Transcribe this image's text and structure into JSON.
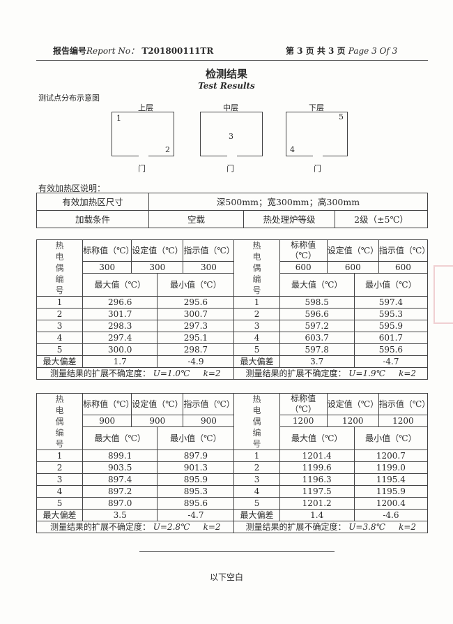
{
  "header": {
    "report_no_cn": "报告编号",
    "report_no_en": "Report No：",
    "report_no": "T201800111TR",
    "page_cn": "第 3 页 共 3 页",
    "page_en": "Page 3 Of 3"
  },
  "title_cn": "检测结果",
  "title_en": "Test Results",
  "diagram": {
    "label": "测试点分布示意图",
    "layers": [
      {
        "name": "上层",
        "points": [
          "1",
          "2"
        ]
      },
      {
        "name": "中层",
        "points": [
          "3"
        ]
      },
      {
        "name": "下层",
        "points": [
          "5",
          "4"
        ]
      }
    ],
    "door": "门"
  },
  "zone": {
    "label": "有效加热区说明：",
    "size_label": "有效加热区尺寸",
    "size_value": "深500mm；宽300mm；高300mm",
    "load_label": "加载条件",
    "load_value": "空载",
    "grade_label": "热处理炉等级",
    "grade_value": "2级（±5℃）"
  },
  "labels": {
    "tc": "热电偶编号",
    "nominal": "标称值（℃）",
    "set": "设定值（℃）",
    "indicated": "指示值（℃）",
    "max": "最大值（℃）",
    "min": "最小值（℃）",
    "maxdev": "最大偏差",
    "unc": "测量结果的扩展不确定度："
  },
  "tables": [
    [
      {
        "nominal": "300",
        "set": "300",
        "ind": "300",
        "rows": [
          [
            "1",
            "296.6",
            "295.6"
          ],
          [
            "2",
            "301.7",
            "300.7"
          ],
          [
            "3",
            "298.3",
            "297.3"
          ],
          [
            "4",
            "297.4",
            "295.1"
          ],
          [
            "5",
            "300.0",
            "298.7"
          ]
        ],
        "dev": [
          "1.7",
          "-4.9"
        ],
        "U": "U=1.0℃",
        "k": "k=2"
      },
      {
        "nominal": "600",
        "set": "600",
        "ind": "600",
        "rows": [
          [
            "1",
            "598.5",
            "597.4"
          ],
          [
            "2",
            "596.6",
            "595.3"
          ],
          [
            "3",
            "597.2",
            "595.9"
          ],
          [
            "4",
            "603.7",
            "601.7"
          ],
          [
            "5",
            "597.8",
            "595.6"
          ]
        ],
        "dev": [
          "3.7",
          "-4.7"
        ],
        "U": "U=1.9℃",
        "k": "k=2"
      }
    ],
    [
      {
        "nominal": "900",
        "set": "900",
        "ind": "900",
        "rows": [
          [
            "1",
            "899.1",
            "897.9"
          ],
          [
            "2",
            "903.5",
            "901.3"
          ],
          [
            "3",
            "897.4",
            "895.9"
          ],
          [
            "4",
            "897.2",
            "895.3"
          ],
          [
            "5",
            "897.0",
            "895.6"
          ]
        ],
        "dev": [
          "3.5",
          "-4.7"
        ],
        "U": "U=2.8℃",
        "k": "k=2"
      },
      {
        "nominal": "1200",
        "set": "1200",
        "ind": "1200",
        "rows": [
          [
            "1",
            "1201.4",
            "1200.7"
          ],
          [
            "2",
            "1199.6",
            "1199.0"
          ],
          [
            "3",
            "1196.3",
            "1195.4"
          ],
          [
            "4",
            "1197.5",
            "1195.9"
          ],
          [
            "5",
            "1201.2",
            "1200.4"
          ]
        ],
        "dev": [
          "1.4",
          "-4.6"
        ],
        "U": "U=3.8℃",
        "k": "k=2"
      }
    ]
  ],
  "footer": "以下空白"
}
